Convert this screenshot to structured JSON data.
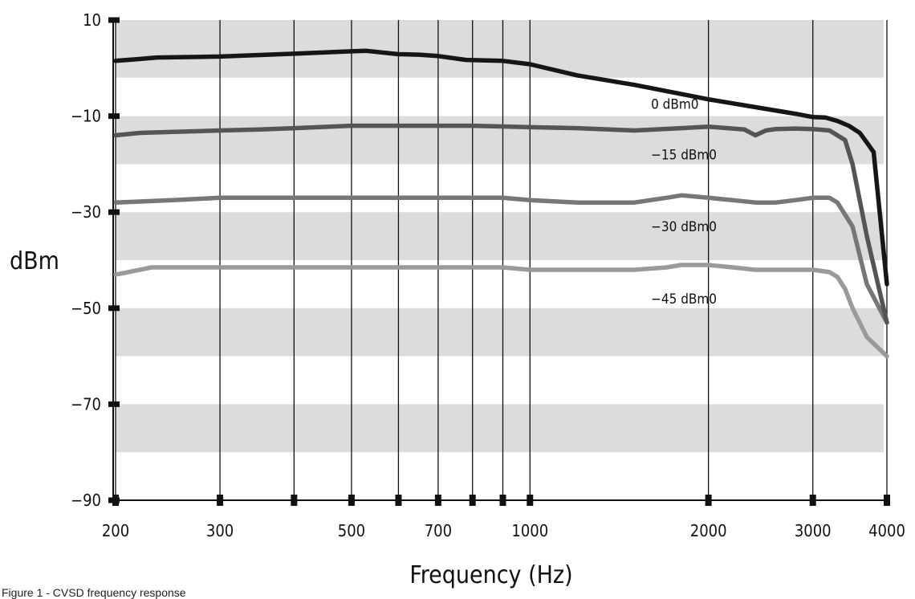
{
  "caption": "Figure 1 - CVSD frequency response",
  "chart_data": {
    "type": "line",
    "xlabel": "Frequency (Hz)",
    "ylabel": "dBm",
    "x_scale": "log",
    "xlim": [
      200,
      4000
    ],
    "ylim": [
      -90,
      10
    ],
    "x_ticks": [
      200,
      300,
      400,
      500,
      600,
      700,
      800,
      900,
      1000,
      2000,
      3000,
      4000
    ],
    "x_tick_labels": [
      {
        "value": 200,
        "label": "200"
      },
      {
        "value": 300,
        "label": "300"
      },
      {
        "value": 500,
        "label": "500"
      },
      {
        "value": 700,
        "label": "700"
      },
      {
        "value": 1000,
        "label": "1000"
      },
      {
        "value": 2000,
        "label": "2000"
      },
      {
        "value": 3000,
        "label": "3000"
      },
      {
        "value": 4000,
        "label": "4000"
      }
    ],
    "y_ticks": [
      {
        "value": 10,
        "label": "10"
      },
      {
        "value": -10,
        "label": "−10"
      },
      {
        "value": -30,
        "label": "−30"
      },
      {
        "value": -50,
        "label": "−50"
      },
      {
        "value": -70,
        "label": "−70"
      },
      {
        "value": -90,
        "label": "−90"
      }
    ],
    "bands": [
      [
        -2,
        10
      ],
      [
        -20,
        -10
      ],
      [
        -40,
        -30
      ],
      [
        -60,
        -50
      ],
      [
        -80,
        -70
      ]
    ],
    "colors": {
      "band": "#dcdcdc",
      "grid": "#111111",
      "axis": "#111111"
    },
    "series": [
      {
        "name": "0 dBm0",
        "color": "#161616",
        "x": [
          200,
          215,
          235,
          300,
          400,
          500,
          530,
          600,
          650,
          700,
          780,
          900,
          1000,
          1200,
          1500,
          2000,
          2500,
          2800,
          3000,
          3150,
          3300,
          3450,
          3600,
          3700,
          3800,
          4000
        ],
        "y": [
          1.5,
          1.8,
          2.2,
          2.4,
          3.0,
          3.5,
          3.6,
          2.9,
          2.8,
          2.5,
          1.7,
          1.5,
          0.8,
          -1.5,
          -3.5,
          -6.5,
          -8.5,
          -9.5,
          -10.2,
          -10.3,
          -11.0,
          -12.0,
          -13.5,
          -15.5,
          -17.5,
          -45.0
        ]
      },
      {
        "name": "−15 dBm0",
        "color": "#555555",
        "x": [
          200,
          220,
          250,
          300,
          350,
          400,
          500,
          600,
          700,
          800,
          1000,
          1200,
          1500,
          1800,
          2000,
          2300,
          2400,
          2500,
          2600,
          2800,
          3000,
          3200,
          3300,
          3400,
          3500,
          3700,
          4000
        ],
        "y": [
          -14.0,
          -13.5,
          -13.3,
          -13.0,
          -12.8,
          -12.5,
          -12.0,
          -12.0,
          -12.0,
          -12.0,
          -12.3,
          -12.5,
          -13.0,
          -12.5,
          -12.2,
          -12.8,
          -14.0,
          -13.0,
          -12.7,
          -12.6,
          -12.7,
          -13.0,
          -14.0,
          -15.0,
          -20.0,
          -35.0,
          -53.0
        ]
      },
      {
        "name": "−30 dBm0",
        "color": "#777777",
        "x": [
          200,
          250,
          300,
          400,
          500,
          600,
          700,
          800,
          900,
          1000,
          1200,
          1500,
          1700,
          1800,
          2000,
          2200,
          2400,
          2600,
          2800,
          3000,
          3200,
          3300,
          3500,
          3700,
          4000
        ],
        "y": [
          -28.0,
          -27.5,
          -27.0,
          -27.0,
          -27.0,
          -27.0,
          -27.0,
          -27.0,
          -27.0,
          -27.5,
          -28.0,
          -28.0,
          -27.0,
          -26.5,
          -27.0,
          -27.5,
          -28.0,
          -28.0,
          -27.5,
          -27.0,
          -27.0,
          -28.0,
          -33.0,
          -45.0,
          -53.0
        ]
      },
      {
        "name": "−45 dBm0",
        "color": "#9a9a9a",
        "x": [
          200,
          210,
          230,
          300,
          400,
          500,
          600,
          700,
          800,
          900,
          1000,
          1200,
          1500,
          1700,
          1800,
          2000,
          2200,
          2400,
          2600,
          2800,
          3000,
          3200,
          3300,
          3400,
          3500,
          3700,
          4000
        ],
        "y": [
          -43.0,
          -42.5,
          -41.5,
          -41.5,
          -41.5,
          -41.5,
          -41.5,
          -41.5,
          -41.5,
          -41.5,
          -42.0,
          -42.0,
          -42.0,
          -41.5,
          -41.0,
          -41.0,
          -41.5,
          -42.0,
          -42.0,
          -42.0,
          -42.0,
          -42.5,
          -43.5,
          -46.0,
          -50.0,
          -56.0,
          -60.0
        ]
      }
    ],
    "annotations": [
      {
        "text": "0 dBm0",
        "x": 1600,
        "y": -7.5
      },
      {
        "text": "−15 dBm0",
        "x": 1600,
        "y": -18.0
      },
      {
        "text": "−30 dBm0",
        "x": 1600,
        "y": -33.0
      },
      {
        "text": "−45 dBm0",
        "x": 1600,
        "y": -48.0
      }
    ]
  }
}
